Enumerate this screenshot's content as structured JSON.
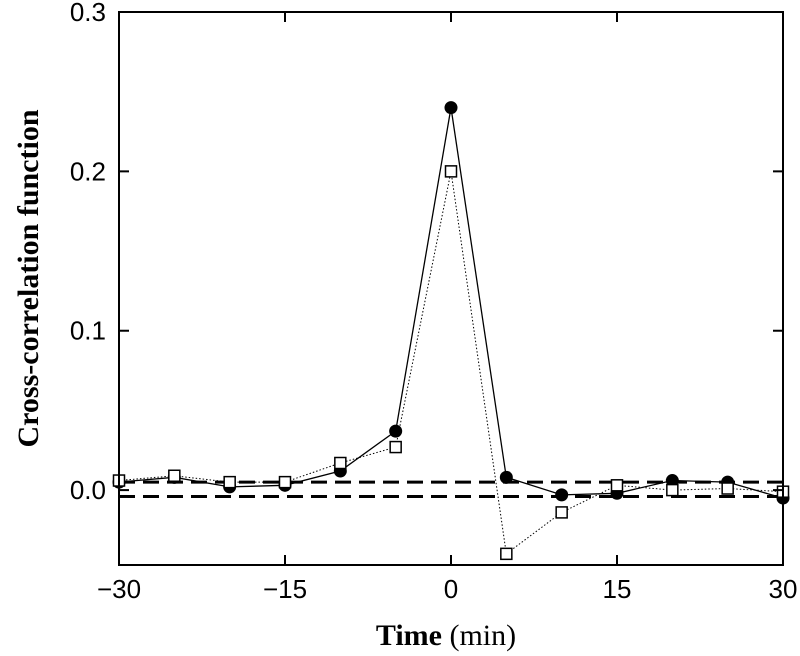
{
  "chart_data": {
    "type": "line",
    "xlabel_bold": "Time",
    "xlabel_unit": "(min)",
    "ylabel": "Cross-correlation function",
    "xlim": [
      -30,
      30
    ],
    "ylim": [
      -0.047,
      0.3
    ],
    "x_ticks": [
      -30,
      -15,
      0,
      15,
      30
    ],
    "x_tick_labels": [
      "−30",
      "−15",
      "0",
      "15",
      "30"
    ],
    "y_ticks": [
      0.0,
      0.1,
      0.2,
      0.3
    ],
    "y_tick_labels": [
      "0.0",
      "0.1",
      "0.2",
      "0.3"
    ],
    "reference_lines": [
      0.005,
      -0.004
    ],
    "grid": false,
    "series": [
      {
        "marker": "filled-circle",
        "line": "solid",
        "x": [
          -30,
          -25,
          -20,
          -15,
          -10,
          -5,
          0,
          5,
          10,
          15,
          20,
          25,
          30
        ],
        "y": [
          0.005,
          0.008,
          0.002,
          0.003,
          0.012,
          0.037,
          0.24,
          0.008,
          -0.003,
          -0.002,
          0.006,
          0.005,
          -0.005
        ]
      },
      {
        "marker": "open-square",
        "line": "dotted",
        "x": [
          -30,
          -25,
          -20,
          -15,
          -10,
          -5,
          0,
          5,
          10,
          15,
          20,
          25,
          30
        ],
        "y": [
          0.006,
          0.009,
          0.005,
          0.005,
          0.017,
          0.027,
          0.2,
          -0.04,
          -0.014,
          0.003,
          -0.0,
          0.001,
          -0.001
        ]
      }
    ]
  }
}
